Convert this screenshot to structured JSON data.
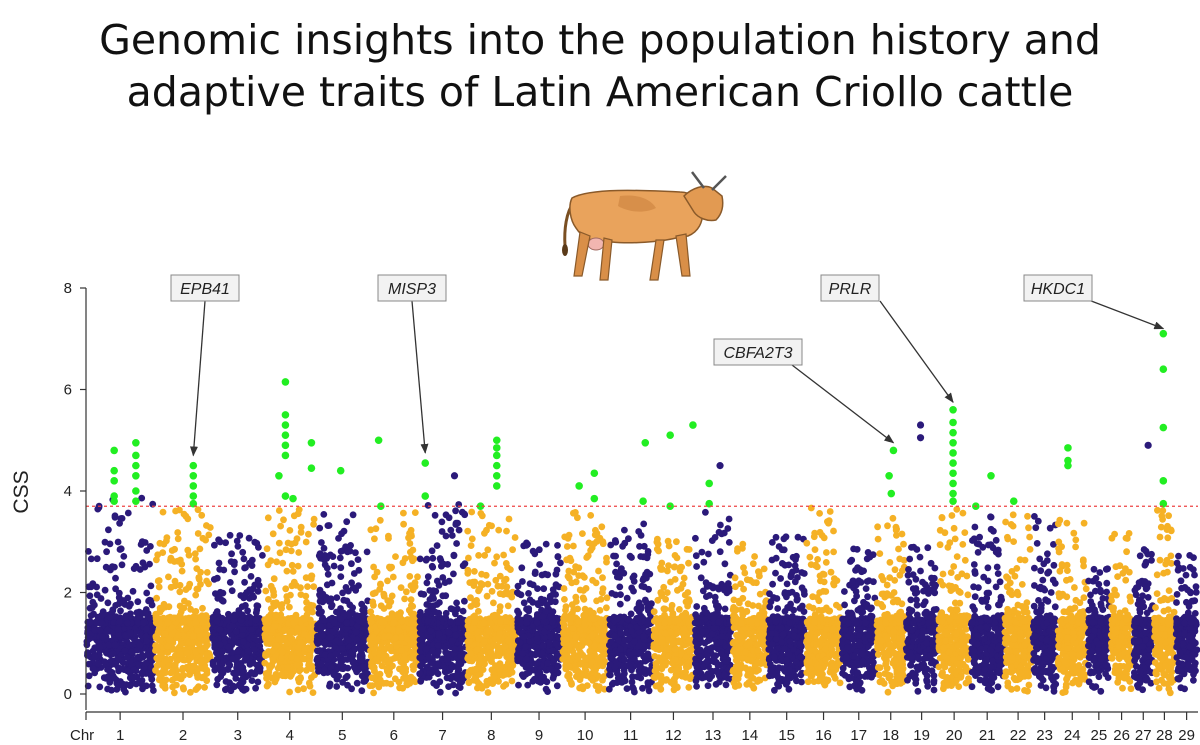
{
  "title": {
    "line1": "Genomic insights into the population history and",
    "line2": "adaptive traits of Latin American Criollo cattle"
  },
  "illustration": {
    "icon": "cow-icon"
  },
  "chart_data": {
    "type": "scatter",
    "subtype": "manhattan",
    "ylabel": "CSS",
    "xlabel_prefix": "Chr",
    "ylim": [
      0,
      8
    ],
    "yticks": [
      0,
      2,
      4,
      6,
      8
    ],
    "threshold": {
      "value": 3.7,
      "style": "dashed",
      "color": "#ee4444"
    },
    "colors": {
      "odd": "#2b1a7a",
      "even": "#f5b125",
      "significant": "#22ee22"
    },
    "chromosomes": [
      {
        "label": "1",
        "start": 0.0,
        "end": 6.3,
        "max": 3.9
      },
      {
        "label": "2",
        "start": 6.3,
        "end": 11.6,
        "max": 3.8
      },
      {
        "label": "3",
        "start": 11.6,
        "end": 16.4,
        "max": 3.3
      },
      {
        "label": "4",
        "start": 16.4,
        "end": 21.2,
        "max": 3.7
      },
      {
        "label": "5",
        "start": 21.2,
        "end": 26.1,
        "max": 3.6
      },
      {
        "label": "6",
        "start": 26.1,
        "end": 30.7,
        "max": 3.6
      },
      {
        "label": "7",
        "start": 30.7,
        "end": 35.1,
        "max": 3.8
      },
      {
        "label": "8",
        "start": 35.1,
        "end": 39.7,
        "max": 3.6
      },
      {
        "label": "9",
        "start": 39.7,
        "end": 43.9,
        "max": 3.0
      },
      {
        "label": "10",
        "start": 43.9,
        "end": 48.2,
        "max": 3.6
      },
      {
        "label": "11",
        "start": 48.2,
        "end": 52.3,
        "max": 3.4
      },
      {
        "label": "12",
        "start": 52.3,
        "end": 56.1,
        "max": 3.1
      },
      {
        "label": "13",
        "start": 56.1,
        "end": 59.6,
        "max": 3.6
      },
      {
        "label": "14",
        "start": 59.6,
        "end": 62.9,
        "max": 3.0
      },
      {
        "label": "15",
        "start": 62.9,
        "end": 66.4,
        "max": 3.1
      },
      {
        "label": "16",
        "start": 66.4,
        "end": 69.7,
        "max": 3.7
      },
      {
        "label": "17",
        "start": 69.7,
        "end": 72.9,
        "max": 2.9
      },
      {
        "label": "18",
        "start": 72.9,
        "end": 75.6,
        "max": 3.7
      },
      {
        "label": "19",
        "start": 75.6,
        "end": 78.6,
        "max": 3.0
      },
      {
        "label": "20",
        "start": 78.6,
        "end": 81.6,
        "max": 3.7
      },
      {
        "label": "21",
        "start": 81.6,
        "end": 84.7,
        "max": 3.5
      },
      {
        "label": "22",
        "start": 84.7,
        "end": 87.3,
        "max": 3.6
      },
      {
        "label": "23",
        "start": 87.3,
        "end": 89.6,
        "max": 3.6
      },
      {
        "label": "24",
        "start": 89.6,
        "end": 92.4,
        "max": 3.6
      },
      {
        "label": "25",
        "start": 92.4,
        "end": 94.5,
        "max": 2.6
      },
      {
        "label": "26",
        "start": 94.5,
        "end": 96.6,
        "max": 3.2
      },
      {
        "label": "27",
        "start": 96.6,
        "end": 98.5,
        "max": 3.0
      },
      {
        "label": "28",
        "start": 98.5,
        "end": 100.5,
        "max": 3.7
      },
      {
        "label": "29",
        "start": 100.5,
        "end": 102.6,
        "max": 2.8
      }
    ],
    "significant_points": [
      {
        "x": 2.6,
        "y": 4.8
      },
      {
        "x": 2.6,
        "y": 4.4
      },
      {
        "x": 2.6,
        "y": 4.2
      },
      {
        "x": 2.6,
        "y": 3.9
      },
      {
        "x": 2.6,
        "y": 3.8
      },
      {
        "x": 4.6,
        "y": 4.95
      },
      {
        "x": 4.6,
        "y": 4.7
      },
      {
        "x": 4.6,
        "y": 4.5
      },
      {
        "x": 4.6,
        "y": 4.3
      },
      {
        "x": 4.6,
        "y": 4.0
      },
      {
        "x": 4.6,
        "y": 3.8
      },
      {
        "x": 9.9,
        "y": 4.5
      },
      {
        "x": 9.9,
        "y": 4.3
      },
      {
        "x": 9.9,
        "y": 4.1
      },
      {
        "x": 9.9,
        "y": 3.9
      },
      {
        "x": 9.9,
        "y": 3.75
      },
      {
        "x": 18.4,
        "y": 6.15
      },
      {
        "x": 18.4,
        "y": 5.5
      },
      {
        "x": 18.4,
        "y": 5.3
      },
      {
        "x": 18.4,
        "y": 5.1
      },
      {
        "x": 18.4,
        "y": 4.9
      },
      {
        "x": 18.4,
        "y": 4.7
      },
      {
        "x": 18.4,
        "y": 3.9
      },
      {
        "x": 17.8,
        "y": 4.3
      },
      {
        "x": 19.1,
        "y": 3.85
      },
      {
        "x": 20.8,
        "y": 4.95
      },
      {
        "x": 20.8,
        "y": 4.45
      },
      {
        "x": 23.5,
        "y": 4.4
      },
      {
        "x": 27.0,
        "y": 5.0
      },
      {
        "x": 27.2,
        "y": 3.7
      },
      {
        "x": 31.3,
        "y": 4.55
      },
      {
        "x": 31.3,
        "y": 3.9
      },
      {
        "x": 36.4,
        "y": 3.7
      },
      {
        "x": 37.9,
        "y": 5.0
      },
      {
        "x": 37.9,
        "y": 4.85
      },
      {
        "x": 37.9,
        "y": 4.7
      },
      {
        "x": 37.9,
        "y": 4.5
      },
      {
        "x": 37.9,
        "y": 4.3
      },
      {
        "x": 37.9,
        "y": 4.1
      },
      {
        "x": 45.5,
        "y": 4.1
      },
      {
        "x": 46.9,
        "y": 4.35
      },
      {
        "x": 46.9,
        "y": 3.85
      },
      {
        "x": 51.6,
        "y": 4.95
      },
      {
        "x": 51.4,
        "y": 3.8
      },
      {
        "x": 53.9,
        "y": 5.1
      },
      {
        "x": 53.9,
        "y": 3.7
      },
      {
        "x": 56.0,
        "y": 5.3
      },
      {
        "x": 57.5,
        "y": 4.15
      },
      {
        "x": 57.5,
        "y": 3.75
      },
      {
        "x": 74.5,
        "y": 4.8
      },
      {
        "x": 74.1,
        "y": 4.3
      },
      {
        "x": 74.3,
        "y": 3.95
      },
      {
        "x": 80.0,
        "y": 5.6
      },
      {
        "x": 80.0,
        "y": 5.35
      },
      {
        "x": 80.0,
        "y": 5.15
      },
      {
        "x": 80.0,
        "y": 4.95
      },
      {
        "x": 80.0,
        "y": 4.75
      },
      {
        "x": 80.0,
        "y": 4.55
      },
      {
        "x": 80.0,
        "y": 4.35
      },
      {
        "x": 80.0,
        "y": 4.15
      },
      {
        "x": 80.0,
        "y": 3.95
      },
      {
        "x": 80.0,
        "y": 3.8
      },
      {
        "x": 82.1,
        "y": 3.7
      },
      {
        "x": 83.5,
        "y": 4.3
      },
      {
        "x": 85.6,
        "y": 3.8
      },
      {
        "x": 90.6,
        "y": 4.85
      },
      {
        "x": 90.6,
        "y": 4.6
      },
      {
        "x": 90.6,
        "y": 4.5
      },
      {
        "x": 99.4,
        "y": 7.1
      },
      {
        "x": 99.4,
        "y": 6.4
      },
      {
        "x": 99.4,
        "y": 5.25
      },
      {
        "x": 99.4,
        "y": 4.2
      },
      {
        "x": 99.4,
        "y": 3.75
      }
    ],
    "highlight_points_nonsig": [
      {
        "x": 77.0,
        "y": 5.3
      },
      {
        "x": 77.0,
        "y": 5.05
      },
      {
        "x": 98.0,
        "y": 4.9
      },
      {
        "x": 58.5,
        "y": 4.5
      },
      {
        "x": 34.0,
        "y": 4.3
      }
    ],
    "annotations": [
      {
        "label": "EPB41",
        "target_x": 9.9,
        "target_y": 4.7
      },
      {
        "label": "MISP3",
        "target_x": 31.3,
        "target_y": 4.75
      },
      {
        "label": "CBFA2T3",
        "target_x": 74.5,
        "target_y": 4.95
      },
      {
        "label": "PRLR",
        "target_x": 80.0,
        "target_y": 5.75
      },
      {
        "label": "HKDC1",
        "target_x": 99.4,
        "target_y": 7.2
      }
    ]
  }
}
